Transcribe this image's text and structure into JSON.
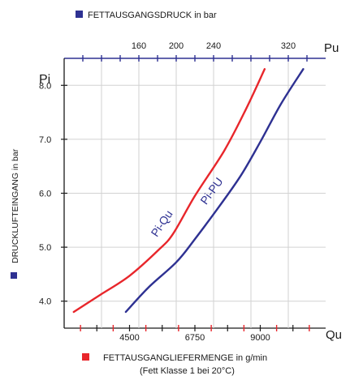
{
  "chart_data": {
    "type": "line",
    "legend_top": {
      "label": "FETTAUSGANGSDRUCK in bar",
      "color": "#2b2f8f"
    },
    "legend_left": {
      "label": "DRUCKLUFTEINGANG in bar",
      "color": "#2b2f8f"
    },
    "legend_bottom": {
      "label": "FETTAUSGANGLIEFERMENGE in g/min",
      "sub": "(Fett Klasse 1 bei 20°C)",
      "color": "#e8262b"
    },
    "y_axis": {
      "label": "Pi",
      "range": [
        3.5,
        8.5
      ],
      "ticks": [
        "4.0",
        "5.0",
        "6.0",
        "7.0",
        "8.0"
      ]
    },
    "x_bottom": {
      "label": "Qu",
      "range": [
        2250,
        11250
      ],
      "ticks": [
        "4500",
        "6750",
        "9000"
      ]
    },
    "x_top": {
      "label": "Pu",
      "range": [
        80,
        360
      ],
      "ticks": [
        "160",
        "200",
        "240",
        "320"
      ]
    },
    "series": [
      {
        "name": "Pi-Qu",
        "axis": "bottom",
        "color": "#e8262b",
        "points": [
          [
            2580,
            3.8
          ],
          [
            3500,
            4.12
          ],
          [
            4500,
            4.47
          ],
          [
            5500,
            4.95
          ],
          [
            6000,
            5.25
          ],
          [
            6750,
            5.95
          ],
          [
            7750,
            6.78
          ],
          [
            8500,
            7.55
          ],
          [
            9150,
            8.3
          ]
        ]
      },
      {
        "name": "Pi-PU",
        "axis": "top",
        "color": "#2e3192",
        "points": [
          [
            146,
            3.8
          ],
          [
            170,
            4.25
          ],
          [
            200,
            4.72
          ],
          [
            220,
            5.15
          ],
          [
            250,
            5.85
          ],
          [
            270,
            6.35
          ],
          [
            290,
            6.95
          ],
          [
            312,
            7.65
          ],
          [
            336,
            8.3
          ]
        ]
      }
    ]
  }
}
